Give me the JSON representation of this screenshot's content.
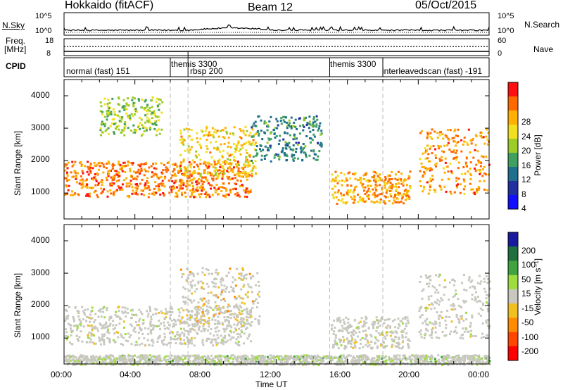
{
  "header": {
    "station": "Hokkaido (fitACF)",
    "beam": "Beam 12",
    "date": "05/Oct/2015"
  },
  "sky_panel": {
    "left_label": "N.Sky",
    "left_ticks": [
      "10^5",
      "10^0"
    ],
    "right_ticks": [
      "10^5",
      "10^0"
    ],
    "right_label": "N.Search"
  },
  "freq_panel": {
    "left_label_line1": "Freq.",
    "left_label_line2": "[MHz]",
    "left_ticks": [
      "18",
      "8"
    ],
    "right_ticks": [
      "60",
      "0"
    ],
    "right_label": "Nave"
  },
  "cpid": {
    "label": "CPID",
    "segments": [
      {
        "label": "normal (fast) 151",
        "start": 0.0,
        "end": 7.0
      },
      {
        "label": "themis 3300",
        "start": 6.0,
        "end": 7.0
      },
      {
        "label": "rbsp 200",
        "start": 7.0,
        "end": 15.0
      },
      {
        "label": "themis 3300",
        "start": 15.0,
        "end": 18.0
      },
      {
        "label": "interleavedscan (fast) -191",
        "start": 18.0,
        "end": 24.0
      }
    ]
  },
  "axes": {
    "x_ticks": [
      "00:00",
      "04:00",
      "08:00",
      "12:00",
      "16:00",
      "20:00",
      "00:00"
    ],
    "x_label": "Time UT",
    "y_label": "Slant Range [km]",
    "y_ticks": [
      "1000",
      "2000",
      "3000",
      "4000"
    ]
  },
  "power_scale": {
    "label": "Power [dB]",
    "ticks": [
      "28",
      "24",
      "20",
      "16",
      "12",
      "8",
      "4"
    ],
    "colors": [
      "#ff1010",
      "#ff6a00",
      "#ffb000",
      "#f2e020",
      "#9ccc28",
      "#40a060",
      "#1f6f8f",
      "#2030a0",
      "#1010ff"
    ]
  },
  "velocity_scale": {
    "label": "Velocity [m s⁻¹]",
    "ticks": [
      "200",
      "100",
      "50",
      "15",
      "-15",
      "-50",
      "-100",
      "-200"
    ],
    "colors": [
      "#1a1aa0",
      "#1f6f3f",
      "#3fa33f",
      "#9fdc40",
      "#c8c8c0",
      "#f0c020",
      "#ff8c00",
      "#ff4500",
      "#ff0000"
    ]
  },
  "chart_data": {
    "type": "heatmap",
    "title": "Hokkaido (fitACF)",
    "xlabel": "Time UT",
    "ylabel": "Slant Range [km]",
    "xlim": [
      0,
      24
    ],
    "ylim": [
      200,
      4500
    ],
    "panels": [
      {
        "quantity": "Power [dB]",
        "clim": [
          0,
          32
        ],
        "regions": [
          {
            "t_start": 0.0,
            "t_end": 10.5,
            "range_min": 900,
            "range_max": 2000,
            "level": 27
          },
          {
            "t_start": 6.5,
            "t_end": 10.8,
            "range_min": 1500,
            "range_max": 3100,
            "level": 22
          },
          {
            "t_start": 2.0,
            "t_end": 5.5,
            "range_min": 2800,
            "range_max": 4000,
            "level": 16
          },
          {
            "t_start": 10.5,
            "t_end": 14.5,
            "range_min": 2000,
            "range_max": 3400,
            "level": 10
          },
          {
            "t_start": 15.0,
            "t_end": 19.5,
            "range_min": 700,
            "range_max": 1700,
            "level": 25
          },
          {
            "t_start": 20.0,
            "t_end": 24.0,
            "range_min": 1000,
            "range_max": 3000,
            "level": 26
          }
        ]
      },
      {
        "quantity": "Velocity [m s⁻¹]",
        "clim": [
          -250,
          250
        ],
        "regions": [
          {
            "t_start": 0.0,
            "t_end": 10.5,
            "range_min": 800,
            "range_max": 2000,
            "level": 0
          },
          {
            "t_start": 6.5,
            "t_end": 11.0,
            "range_min": 1400,
            "range_max": 3200,
            "level": -40
          },
          {
            "t_start": 15.0,
            "t_end": 19.5,
            "range_min": 700,
            "range_max": 1700,
            "level": 0
          },
          {
            "t_start": 20.0,
            "t_end": 24.0,
            "range_min": 1000,
            "range_max": 3000,
            "level": 0
          },
          {
            "t_start": 0.0,
            "t_end": 24.0,
            "range_min": 200,
            "range_max": 500,
            "level": 30
          }
        ]
      }
    ]
  }
}
